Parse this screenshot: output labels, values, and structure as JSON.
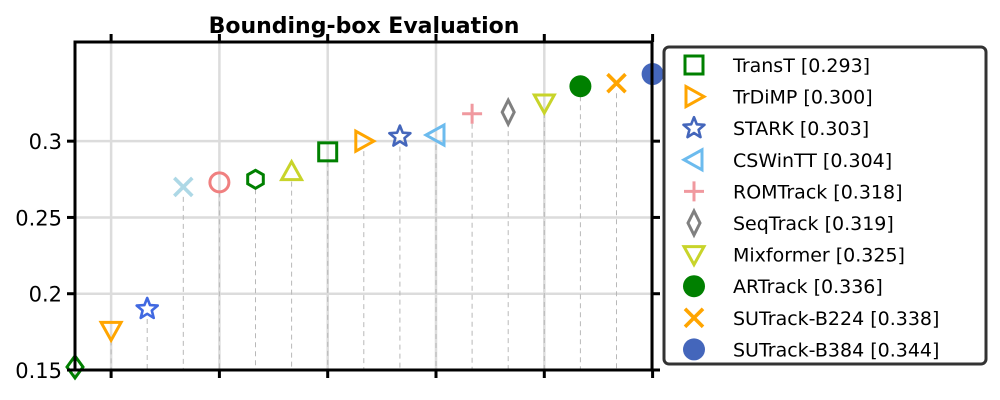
{
  "chart_data": {
    "type": "scatter",
    "title": "Bounding-box Evaluation",
    "xlabel": "",
    "ylabel": "",
    "ylim": [
      0.15,
      0.365
    ],
    "xlim": [
      0,
      16
    ],
    "yticks": [
      0.15,
      0.2,
      0.25,
      0.3
    ],
    "ytick_labels": [
      "0.15",
      "0.2",
      "0.25",
      "0.3"
    ],
    "grid": true,
    "legend_position": "right",
    "unlabeled_points": [
      {
        "x": 0,
        "y": 0.152,
        "marker": "diamond",
        "color": "#008000",
        "filled": false
      },
      {
        "x": 1,
        "y": 0.176,
        "marker": "triangle-down",
        "color": "#ffa500",
        "filled": false
      },
      {
        "x": 2,
        "y": 0.19,
        "marker": "star",
        "color": "#4169e1",
        "filled": false
      },
      {
        "x": 3,
        "y": 0.27,
        "marker": "x",
        "color": "#add8e6",
        "filled": false
      },
      {
        "x": 4,
        "y": 0.273,
        "marker": "circle",
        "color": "#f08080",
        "filled": false
      },
      {
        "x": 5,
        "y": 0.275,
        "marker": "hexagon",
        "color": "#008000",
        "filled": false
      },
      {
        "x": 6,
        "y": 0.28,
        "marker": "triangle-up",
        "color": "#c8d42a",
        "filled": false
      }
    ],
    "series": [
      {
        "name": "TransT [0.293]",
        "x": 7,
        "y": 0.293,
        "marker": "square",
        "color": "#008000",
        "filled": false
      },
      {
        "name": "TrDiMP [0.300]",
        "x": 8,
        "y": 0.3,
        "marker": "triangle-right",
        "color": "#ffa500",
        "filled": false
      },
      {
        "name": "STARK [0.303]",
        "x": 9,
        "y": 0.303,
        "marker": "star",
        "color": "#4466bb",
        "filled": false
      },
      {
        "name": "CSWinTT [0.304]",
        "x": 10,
        "y": 0.304,
        "marker": "triangle-left",
        "color": "#6cbbee",
        "filled": false
      },
      {
        "name": "ROMTrack [0.318]",
        "x": 11,
        "y": 0.318,
        "marker": "plus",
        "color": "#f0999f",
        "filled": false
      },
      {
        "name": "SeqTrack [0.319]",
        "x": 12,
        "y": 0.319,
        "marker": "thin-diamond",
        "color": "#808080",
        "filled": false
      },
      {
        "name": "Mixformer [0.325]",
        "x": 13,
        "y": 0.325,
        "marker": "triangle-down",
        "color": "#c8d42a",
        "filled": false
      },
      {
        "name": "ARTrack [0.336]",
        "x": 14,
        "y": 0.336,
        "marker": "circle",
        "color": "#008000",
        "filled": true
      },
      {
        "name": "SUTrack-B224 [0.338]",
        "x": 15,
        "y": 0.338,
        "marker": "x",
        "color": "#ffa500",
        "filled": false
      },
      {
        "name": "SUTrack-B384 [0.344]",
        "x": 16,
        "y": 0.344,
        "marker": "circle",
        "color": "#4466bb",
        "filled": true
      }
    ]
  }
}
